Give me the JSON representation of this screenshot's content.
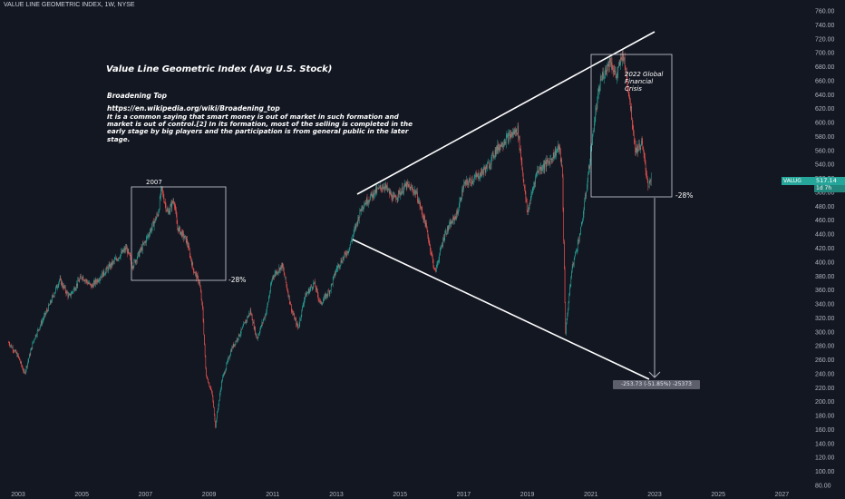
{
  "header": {
    "title": "VALUE LINE GEOMETRIC INDEX, 1W, NYSE"
  },
  "annotations": {
    "main_title": "Value Line Geometric Index (Avg U.S. Stock)",
    "pattern_name": "Broadening Top",
    "url": "https://en.wikipedia.org/wiki/Broadening_top",
    "description": "It is a common saying that smart money is out of market in such formation and market is out of control.[2] In its formation, most of the selling is completed in the early stage by big players and the participation is from general public in the later stage.",
    "box_2007_label": "2007",
    "box_2022_label": "2022 Global Financial Crisis",
    "pct_2007": "-28%",
    "pct_2022": "-28%",
    "measure_label": "-253.73 (-51.85%) -25373"
  },
  "price_badge": {
    "name": "VALUG",
    "value": "517.14",
    "countdown": "1d 7h",
    "color": "#26a69a"
  },
  "colors": {
    "background": "#131722",
    "up": "#26a69a",
    "down": "#ef5350",
    "lines": "#ffffff",
    "grid_text": "#b2b5be"
  },
  "chart_data": {
    "type": "candlestick",
    "xlabel": "",
    "ylabel": "",
    "x_ticks": [
      "2003",
      "2005",
      "2007",
      "2009",
      "2011",
      "2013",
      "2015",
      "2017",
      "2019",
      "2021",
      "2023",
      "2025",
      "2027"
    ],
    "y_ticks": [
      "80.00",
      "100.00",
      "120.00",
      "140.00",
      "160.00",
      "180.00",
      "200.00",
      "220.00",
      "240.00",
      "260.00",
      "280.00",
      "300.00",
      "320.00",
      "340.00",
      "360.00",
      "380.00",
      "400.00",
      "420.00",
      "440.00",
      "460.00",
      "480.00",
      "500.00",
      "520.00",
      "540.00",
      "560.00",
      "580.00",
      "600.00",
      "620.00",
      "640.00",
      "660.00",
      "680.00",
      "700.00",
      "720.00",
      "740.00",
      "760.00"
    ],
    "ylim": [
      80,
      760
    ],
    "xlim": [
      2002.7,
      2028.0
    ],
    "series": [
      {
        "values_approx": [
          [
            2002.7,
            285
          ],
          [
            2003.0,
            265
          ],
          [
            2003.2,
            240
          ],
          [
            2003.5,
            290
          ],
          [
            2004.0,
            340
          ],
          [
            2004.3,
            375
          ],
          [
            2004.6,
            350
          ],
          [
            2005.0,
            380
          ],
          [
            2005.3,
            365
          ],
          [
            2005.7,
            385
          ],
          [
            2006.0,
            400
          ],
          [
            2006.4,
            420
          ],
          [
            2006.6,
            395
          ],
          [
            2007.0,
            430
          ],
          [
            2007.4,
            470
          ],
          [
            2007.5,
            505
          ],
          [
            2007.7,
            470
          ],
          [
            2007.9,
            490
          ],
          [
            2008.0,
            450
          ],
          [
            2008.3,
            430
          ],
          [
            2008.5,
            390
          ],
          [
            2008.7,
            370
          ],
          [
            2008.8,
            330
          ],
          [
            2008.9,
            240
          ],
          [
            2009.1,
            210
          ],
          [
            2009.2,
            165
          ],
          [
            2009.4,
            230
          ],
          [
            2009.7,
            275
          ],
          [
            2010.0,
            300
          ],
          [
            2010.3,
            330
          ],
          [
            2010.5,
            290
          ],
          [
            2010.8,
            330
          ],
          [
            2011.0,
            380
          ],
          [
            2011.3,
            395
          ],
          [
            2011.6,
            330
          ],
          [
            2011.8,
            305
          ],
          [
            2012.0,
            350
          ],
          [
            2012.3,
            370
          ],
          [
            2012.5,
            340
          ],
          [
            2012.8,
            360
          ],
          [
            2013.0,
            390
          ],
          [
            2013.4,
            420
          ],
          [
            2013.8,
            480
          ],
          [
            2014.2,
            500
          ],
          [
            2014.5,
            510
          ],
          [
            2014.8,
            490
          ],
          [
            2015.2,
            510
          ],
          [
            2015.5,
            500
          ],
          [
            2015.8,
            455
          ],
          [
            2016.1,
            385
          ],
          [
            2016.4,
            440
          ],
          [
            2016.8,
            470
          ],
          [
            2017.0,
            510
          ],
          [
            2017.5,
            525
          ],
          [
            2017.8,
            540
          ],
          [
            2018.0,
            560
          ],
          [
            2018.3,
            575
          ],
          [
            2018.7,
            590
          ],
          [
            2018.9,
            510
          ],
          [
            2019.0,
            470
          ],
          [
            2019.3,
            530
          ],
          [
            2019.7,
            545
          ],
          [
            2020.0,
            565
          ],
          [
            2020.1,
            530
          ],
          [
            2020.2,
            300
          ],
          [
            2020.4,
            390
          ],
          [
            2020.7,
            450
          ],
          [
            2020.9,
            520
          ],
          [
            2021.1,
            600
          ],
          [
            2021.3,
            660
          ],
          [
            2021.6,
            690
          ],
          [
            2021.8,
            665
          ],
          [
            2022.0,
            700
          ],
          [
            2022.2,
            640
          ],
          [
            2022.4,
            560
          ],
          [
            2022.6,
            570
          ],
          [
            2022.8,
            510
          ],
          [
            2022.9,
            517
          ]
        ]
      }
    ]
  }
}
